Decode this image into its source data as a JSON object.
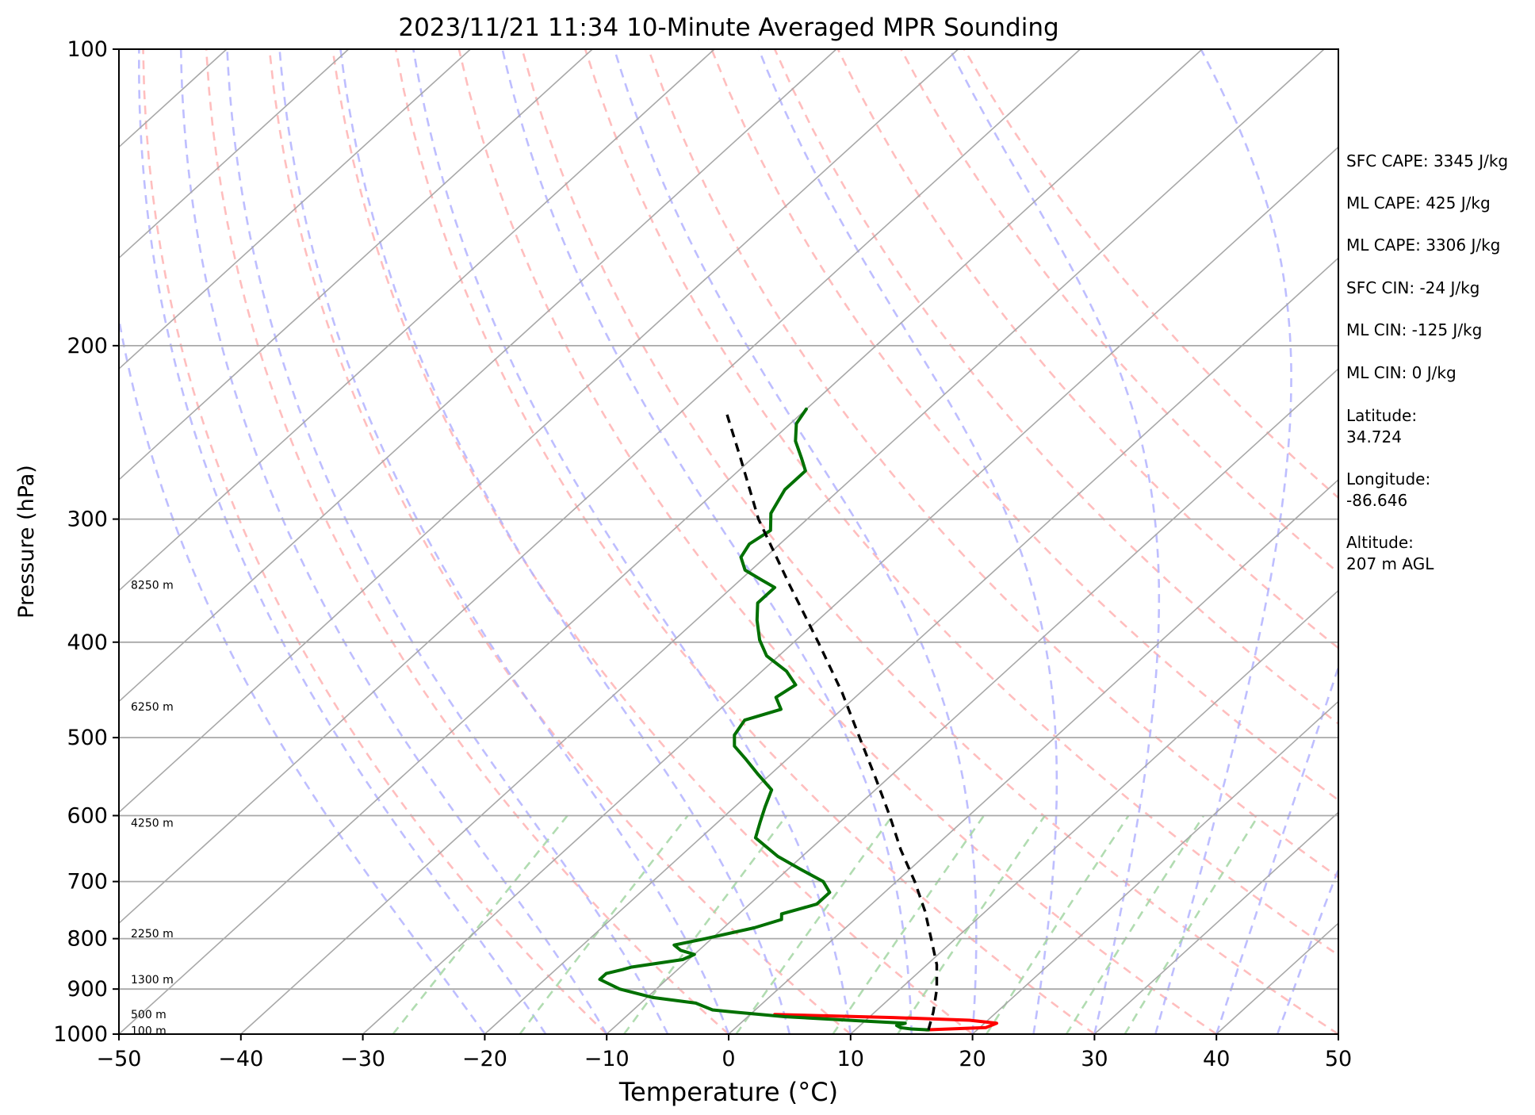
{
  "chart_data": {
    "type": "line",
    "title": "2023/11/21 11:34 10-Minute Averaged MPR Sounding",
    "xlabel": "Temperature (°C)",
    "ylabel": "Pressure (hPa)",
    "xlim": [
      -50,
      50
    ],
    "ylim": [
      1000,
      100
    ],
    "y_scale": "log",
    "grid": true,
    "x_ticks": [
      "−50",
      "−40",
      "−30",
      "−20",
      "−10",
      "0",
      "10",
      "20",
      "30",
      "40",
      "50"
    ],
    "y_ticks": [
      "100",
      "200",
      "300",
      "400",
      "500",
      "600",
      "700",
      "800",
      "900",
      "1000"
    ],
    "height_labels": [
      {
        "p": 350,
        "text": "8250 m"
      },
      {
        "p": 465,
        "text": "6250 m"
      },
      {
        "p": 610,
        "text": "4250 m"
      },
      {
        "p": 790,
        "text": "2250 m"
      },
      {
        "p": 880,
        "text": "1300 m"
      },
      {
        "p": 955,
        "text": "500 m"
      },
      {
        "p": 992,
        "text": "100 m"
      }
    ],
    "series": [
      {
        "color": "#ff0000",
        "points": [
          {
            "p": 990,
            "t": 15.8
          },
          {
            "p": 985,
            "t": 20.5
          },
          {
            "p": 975,
            "t": 21.0
          },
          {
            "p": 968,
            "t": 18.5
          },
          {
            "p": 962,
            "t": 12.0
          },
          {
            "p": 955,
            "t": 2.0
          }
        ]
      },
      {
        "color": "#007000",
        "points": [
          {
            "p": 990,
            "t": 16.0
          },
          {
            "p": 988,
            "t": 14.5
          },
          {
            "p": 985,
            "t": 13.5
          },
          {
            "p": 980,
            "t": 13.0
          },
          {
            "p": 975,
            "t": 13.5
          },
          {
            "p": 970,
            "t": 10.0
          },
          {
            "p": 960,
            "t": 3.0
          },
          {
            "p": 950,
            "t": -1.5
          },
          {
            "p": 945,
            "t": -3.5
          },
          {
            "p": 930,
            "t": -5.5
          },
          {
            "p": 918,
            "t": -9.5
          },
          {
            "p": 900,
            "t": -13.0
          },
          {
            "p": 880,
            "t": -15.5
          },
          {
            "p": 868,
            "t": -15.5
          },
          {
            "p": 860,
            "t": -14.5
          },
          {
            "p": 855,
            "t": -14.0
          },
          {
            "p": 840,
            "t": -10.5
          },
          {
            "p": 830,
            "t": -10.0
          },
          {
            "p": 822,
            "t": -11.5
          },
          {
            "p": 812,
            "t": -12.5
          },
          {
            "p": 800,
            "t": -10.5
          },
          {
            "p": 780,
            "t": -7.5
          },
          {
            "p": 765,
            "t": -6.0
          },
          {
            "p": 755,
            "t": -6.5
          },
          {
            "p": 738,
            "t": -4.5
          },
          {
            "p": 718,
            "t": -4.5
          },
          {
            "p": 700,
            "t": -6.0
          },
          {
            "p": 680,
            "t": -9.0
          },
          {
            "p": 660,
            "t": -12.0
          },
          {
            "p": 632,
            "t": -15.5
          },
          {
            "p": 610,
            "t": -16.5
          },
          {
            "p": 588,
            "t": -17.5
          },
          {
            "p": 565,
            "t": -18.5
          },
          {
            "p": 545,
            "t": -21.0
          },
          {
            "p": 525,
            "t": -23.5
          },
          {
            "p": 510,
            "t": -25.5
          },
          {
            "p": 497,
            "t": -26.5
          },
          {
            "p": 480,
            "t": -27.0
          },
          {
            "p": 468,
            "t": -25.0
          },
          {
            "p": 455,
            "t": -26.5
          },
          {
            "p": 442,
            "t": -26.0
          },
          {
            "p": 428,
            "t": -28.0
          },
          {
            "p": 413,
            "t": -31.0
          },
          {
            "p": 398,
            "t": -33.0
          },
          {
            "p": 380,
            "t": -35.0
          },
          {
            "p": 365,
            "t": -36.5
          },
          {
            "p": 352,
            "t": -36.5
          },
          {
            "p": 345,
            "t": -38.5
          },
          {
            "p": 338,
            "t": -40.5
          },
          {
            "p": 328,
            "t": -42.0
          },
          {
            "p": 318,
            "t": -42.5
          },
          {
            "p": 308,
            "t": -42.0
          },
          {
            "p": 296,
            "t": -43.5
          },
          {
            "p": 288,
            "t": -44.0
          },
          {
            "p": 280,
            "t": -44.5
          },
          {
            "p": 268,
            "t": -44.5
          },
          {
            "p": 260,
            "t": -46.0
          },
          {
            "p": 250,
            "t": -48.0
          },
          {
            "p": 240,
            "t": -49.5
          },
          {
            "p": 232,
            "t": -50.0
          }
        ]
      },
      {
        "color": "#000000",
        "dashed": true,
        "points": [
          {
            "p": 990,
            "t": 16.0
          },
          {
            "p": 950,
            "t": 14.8
          },
          {
            "p": 900,
            "t": 13.0
          },
          {
            "p": 850,
            "t": 10.8
          },
          {
            "p": 800,
            "t": 8.0
          },
          {
            "p": 750,
            "t": 5.0
          },
          {
            "p": 700,
            "t": 1.5
          },
          {
            "p": 650,
            "t": -2.5
          },
          {
            "p": 600,
            "t": -6.5
          },
          {
            "p": 550,
            "t": -11.0
          },
          {
            "p": 500,
            "t": -16.0
          },
          {
            "p": 450,
            "t": -21.5
          },
          {
            "p": 400,
            "t": -28.0
          },
          {
            "p": 350,
            "t": -35.5
          },
          {
            "p": 300,
            "t": -44.0
          },
          {
            "p": 260,
            "t": -51.0
          },
          {
            "p": 235,
            "t": -56.0
          }
        ]
      }
    ],
    "stats": [
      "SFC CAPE: 3345 J/kg",
      "ML CAPE: 425 J/kg",
      "ML CAPE: 3306 J/kg",
      "SFC CIN: -24 J/kg",
      "ML CIN: -125 J/kg",
      "ML CIN: 0 J/kg"
    ],
    "location": {
      "latitude_label": "Latitude:",
      "latitude_value": "34.724",
      "longitude_label": "Longitude:",
      "longitude_value": "-86.646",
      "altitude_label": "Altitude:",
      "altitude_value": "207 m AGL"
    },
    "colors": {
      "isotherm": "#a8a8a8",
      "dry_adiabat": "#ffb3b3",
      "moist_adiabat": "#b3b3ff",
      "mixing_ratio": "#a8d8a8",
      "temperature": "#ff0000",
      "dewpoint": "#007000",
      "parcel": "#000000"
    }
  }
}
